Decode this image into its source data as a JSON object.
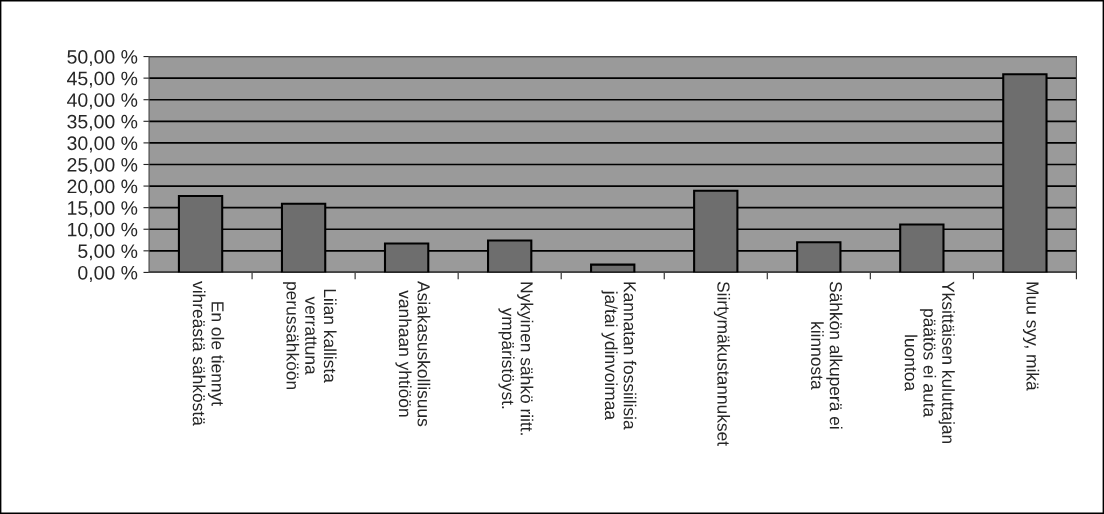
{
  "chart_data": {
    "type": "bar",
    "categories": [
      "En ole tiennyt\nvihreästä sähköstä",
      "Liian kallista\nverrattuna\nperussähköön",
      "Asiakasuskollisuus\nvanhaan yhtiöön",
      "Nykyinen sähkö riitt.\nympäristöyst.",
      "Kannatan fossiilisia\nja/tai ydinvoimaa",
      "Siirtymäkustannukset",
      "Sähkön alkuperä ei\nkiinnosta",
      "Yksittäisen kuluttajan\npäätös ei auta\nluontoa",
      "Muu syy, mikä"
    ],
    "values": [
      17.7,
      15.9,
      6.7,
      7.4,
      1.8,
      18.9,
      7.0,
      11.1,
      45.9
    ],
    "color": "#6e6e6e",
    "ylim": [
      0,
      50
    ],
    "yticks": [
      {
        "value": 0,
        "label": "0,00 %"
      },
      {
        "value": 5,
        "label": "5,00 %"
      },
      {
        "value": 10,
        "label": "10,00 %"
      },
      {
        "value": 15,
        "label": "15,00 %"
      },
      {
        "value": 20,
        "label": "20,00 %"
      },
      {
        "value": 25,
        "label": "25,00 %"
      },
      {
        "value": 30,
        "label": "30,00 %"
      },
      {
        "value": 35,
        "label": "35,00 %"
      },
      {
        "value": 40,
        "label": "40,00 %"
      },
      {
        "value": 45,
        "label": "45,00 %"
      },
      {
        "value": 50,
        "label": "50,00 %"
      }
    ],
    "grid": "y"
  }
}
